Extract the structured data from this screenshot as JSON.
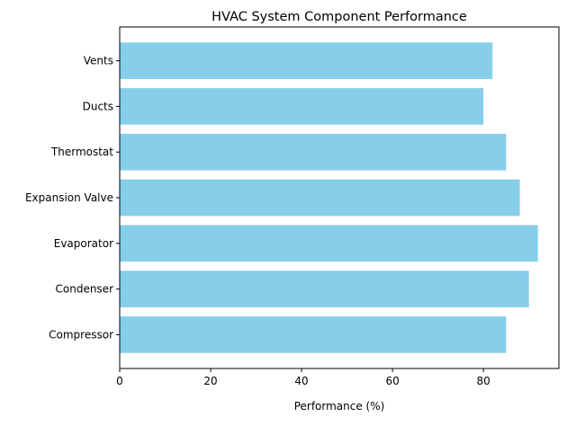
{
  "chart_data": {
    "type": "bar",
    "orientation": "horizontal",
    "title": "HVAC System Component Performance",
    "xlabel": "Performance (%)",
    "ylabel": "",
    "categories": [
      "Compressor",
      "Condenser",
      "Evaporator",
      "Expansion Valve",
      "Thermostat",
      "Ducts",
      "Vents"
    ],
    "values": [
      85,
      90,
      92,
      88,
      85,
      80,
      82
    ],
    "xlim": [
      0,
      96.6
    ],
    "xticks": [
      "0",
      "20",
      "40",
      "60",
      "80"
    ],
    "grid": false,
    "bar_color": "#87CEEB"
  }
}
